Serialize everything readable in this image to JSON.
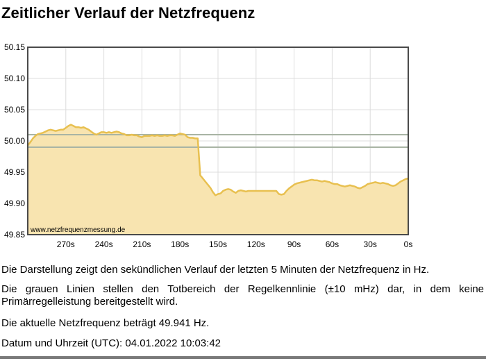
{
  "page": {
    "title": "Zeitlicher Verlauf der Netzfrequenz"
  },
  "chart_data": {
    "type": "area",
    "watermark": "www.netzfrequenzmessung.de",
    "ylim": [
      49.85,
      50.15
    ],
    "xlim": [
      300,
      0
    ],
    "x_unit": "s",
    "y_unit": "Hz",
    "y_ticks": [
      "50.15",
      "50.10",
      "50.05",
      "50.00",
      "49.95",
      "49.90",
      "49.85"
    ],
    "y_tick_values": [
      50.15,
      50.1,
      50.05,
      50.0,
      49.95,
      49.9,
      49.85
    ],
    "x_ticks": [
      "270s",
      "240s",
      "210s",
      "180s",
      "150s",
      "120s",
      "90s",
      "60s",
      "30s",
      "0s"
    ],
    "x_tick_values": [
      270,
      240,
      210,
      180,
      150,
      120,
      90,
      60,
      30,
      0
    ],
    "deadband": [
      49.99,
      50.01
    ],
    "grid": true,
    "colors": {
      "line": "#e8c050",
      "fill": "#f8e4b0",
      "deadband": "#a8b4a4",
      "grid": "#dcdcdc",
      "frame": "#4a4a4a"
    },
    "series": [
      {
        "x": [
          300,
          298,
          296,
          294,
          292,
          290,
          288,
          286,
          284,
          282,
          280,
          278,
          276,
          274,
          272,
          270,
          268,
          266,
          264,
          262,
          260,
          258,
          256,
          254,
          252,
          250,
          248,
          246,
          244,
          242,
          240,
          238,
          236,
          234,
          232,
          230,
          228,
          226,
          224,
          222,
          220,
          218,
          216,
          214,
          212,
          210,
          208,
          206,
          204,
          202,
          200,
          198,
          196,
          194,
          192,
          190,
          188,
          186,
          184,
          182,
          180,
          178,
          176,
          174,
          172,
          170,
          168,
          166,
          164,
          162,
          160,
          158,
          156,
          154,
          152,
          150,
          148,
          146,
          144,
          142,
          140,
          138,
          136,
          134,
          132,
          130,
          128,
          126,
          124,
          122,
          120,
          118,
          116,
          114,
          112,
          110,
          108,
          106,
          104,
          102,
          100,
          98,
          96,
          94,
          92,
          90,
          88,
          86,
          84,
          82,
          80,
          78,
          76,
          74,
          72,
          70,
          68,
          66,
          64,
          62,
          60,
          58,
          56,
          54,
          52,
          50,
          48,
          46,
          44,
          42,
          40,
          38,
          36,
          34,
          32,
          30,
          28,
          26,
          24,
          22,
          20,
          18,
          16,
          14,
          12,
          10,
          8,
          6,
          4,
          2,
          0
        ],
        "values": [
          49.993,
          49.998,
          50.004,
          50.008,
          50.011,
          50.012,
          50.013,
          50.015,
          50.017,
          50.018,
          50.017,
          50.016,
          50.017,
          50.018,
          50.018,
          50.021,
          50.024,
          50.026,
          50.024,
          50.022,
          50.022,
          50.021,
          50.022,
          50.02,
          50.018,
          50.015,
          50.012,
          50.01,
          50.012,
          50.014,
          50.014,
          50.013,
          50.014,
          50.013,
          50.014,
          50.015,
          50.014,
          50.012,
          50.011,
          50.009,
          50.009,
          50.01,
          50.009,
          50.009,
          50.007,
          50.006,
          50.008,
          50.008,
          50.008,
          50.009,
          50.008,
          50.009,
          50.008,
          50.008,
          50.009,
          50.008,
          50.009,
          50.009,
          50.008,
          50.01,
          50.012,
          50.011,
          50.01,
          50.006,
          50.005,
          50.005,
          50.004,
          50.004,
          49.945,
          49.94,
          49.935,
          49.93,
          49.925,
          49.918,
          49.913,
          49.915,
          49.916,
          49.92,
          49.922,
          49.923,
          49.922,
          49.919,
          49.917,
          49.92,
          49.921,
          49.92,
          49.919,
          49.92,
          49.92,
          49.92,
          49.92,
          49.92,
          49.92,
          49.92,
          49.92,
          49.92,
          49.92,
          49.92,
          49.92,
          49.915,
          49.914,
          49.915,
          49.92,
          49.924,
          49.927,
          49.93,
          49.932,
          49.933,
          49.934,
          49.935,
          49.936,
          49.937,
          49.938,
          49.937,
          49.937,
          49.936,
          49.935,
          49.936,
          49.935,
          49.934,
          49.932,
          49.931,
          49.931,
          49.929,
          49.928,
          49.927,
          49.928,
          49.929,
          49.928,
          49.927,
          49.925,
          49.924,
          49.926,
          49.928,
          49.931,
          49.932,
          49.933,
          49.934,
          49.933,
          49.932,
          49.933,
          49.932,
          49.931,
          49.929,
          49.928,
          49.929,
          49.932,
          49.935,
          49.937,
          49.939,
          49.94
        ]
      }
    ]
  },
  "description": {
    "line1": "Die Darstellung zeigt den sekündlichen Verlauf der letzten 5 Minuten der Netzfrequenz in Hz.",
    "line2": "Die grauen Linien stellen den Totbereich der Regelkennlinie (±10 mHz) dar, in dem keine Primärregelleistung bereitgestellt wird.",
    "line3": "Die aktuelle Netzfrequenz beträgt 49.941 Hz.",
    "line4": "Datum und Uhrzeit (UTC): 04.01.2022 10:03:42"
  }
}
